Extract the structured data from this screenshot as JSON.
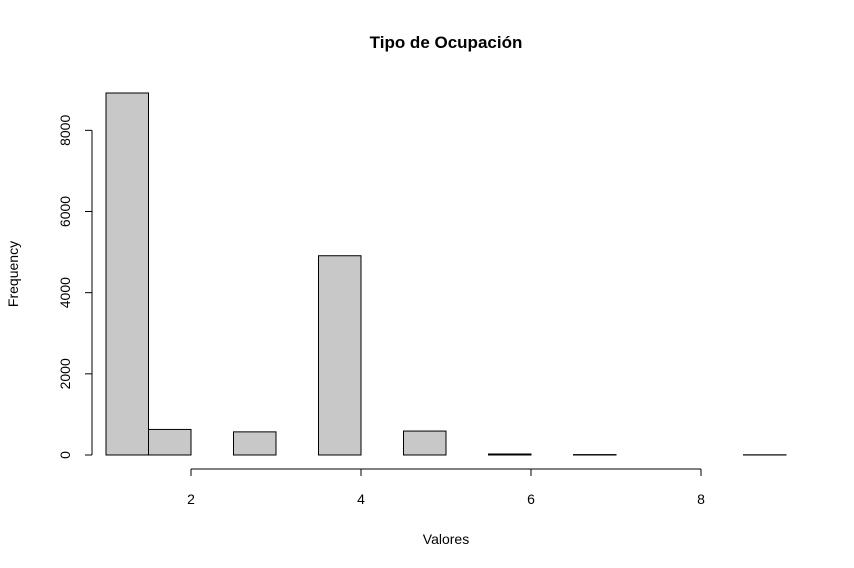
{
  "chart_data": {
    "type": "bar",
    "title": "Tipo de Ocupación",
    "xlabel": "Valores",
    "ylabel": "Frequency",
    "bin_edges": [
      1.0,
      1.5,
      2.0,
      2.5,
      3.0,
      3.5,
      4.0,
      4.5,
      5.0,
      5.5,
      6.0,
      6.5,
      7.0,
      7.5,
      8.0,
      8.5,
      9.0
    ],
    "values": [
      8920,
      630,
      0,
      570,
      0,
      4910,
      0,
      590,
      0,
      25,
      0,
      10,
      0,
      0,
      0,
      5
    ],
    "xlim": [
      1,
      9
    ],
    "ylim": [
      0,
      8920
    ],
    "x_ticks": [
      2,
      4,
      6,
      8
    ],
    "x_tick_labels": [
      "2",
      "4",
      "6",
      "8"
    ],
    "y_ticks": [
      0,
      2000,
      4000,
      6000,
      8000
    ],
    "y_tick_labels": [
      "0",
      "2000",
      "4000",
      "6000",
      "8000"
    ],
    "bar_fill": "#c8c8c8",
    "bar_stroke": "#000000",
    "grid": false,
    "legend": "none"
  }
}
